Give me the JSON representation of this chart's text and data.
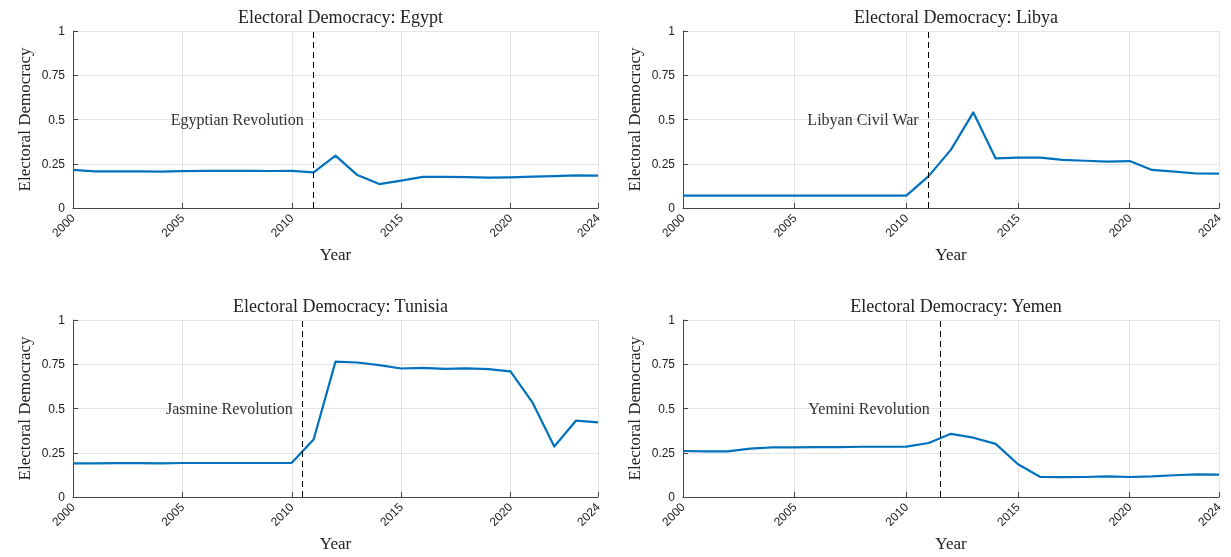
{
  "chart_data": [
    {
      "type": "line",
      "title": "Electoral Democracy: Egypt",
      "xlabel": "Year",
      "ylabel": "Electoral Democracy",
      "x": [
        2000,
        2001,
        2002,
        2003,
        2004,
        2005,
        2006,
        2007,
        2008,
        2009,
        2010,
        2011,
        2012,
        2013,
        2014,
        2015,
        2016,
        2017,
        2018,
        2019,
        2020,
        2021,
        2022,
        2023,
        2024
      ],
      "series": [
        {
          "color": "#0072bd",
          "values": [
            0.215,
            0.207,
            0.207,
            0.207,
            0.206,
            0.208,
            0.21,
            0.21,
            0.21,
            0.209,
            0.21,
            0.201,
            0.296,
            0.186,
            0.135,
            0.155,
            0.176,
            0.176,
            0.174,
            0.172,
            0.173,
            0.177,
            0.18,
            0.184,
            0.183
          ]
        }
      ],
      "xlim": [
        2000,
        2024
      ],
      "xticks": [
        2000,
        2005,
        2010,
        2015,
        2020,
        2024
      ],
      "ylim": [
        0,
        1
      ],
      "yticks": [
        0,
        0.25,
        0.5,
        0.75,
        1
      ],
      "grid": true,
      "ref_lines": [
        {
          "axis": "x",
          "value": 2011,
          "label": "Egyptian Revolution",
          "color": "#000000",
          "line_style": "dashed"
        }
      ]
    },
    {
      "type": "line",
      "title": "Electoral Democracy: Libya",
      "xlabel": "Year",
      "ylabel": "Electoral Democracy",
      "x": [
        2000,
        2001,
        2002,
        2003,
        2004,
        2005,
        2006,
        2007,
        2008,
        2009,
        2010,
        2011,
        2012,
        2013,
        2014,
        2015,
        2016,
        2017,
        2018,
        2019,
        2020,
        2021,
        2022,
        2023,
        2024
      ],
      "series": [
        {
          "color": "#0072bd",
          "values": [
            0.07,
            0.07,
            0.07,
            0.07,
            0.07,
            0.07,
            0.07,
            0.07,
            0.07,
            0.07,
            0.07,
            0.18,
            0.33,
            0.54,
            0.28,
            0.285,
            0.285,
            0.272,
            0.267,
            0.262,
            0.265,
            0.215,
            0.205,
            0.195,
            0.194
          ]
        }
      ],
      "xlim": [
        2000,
        2024
      ],
      "xticks": [
        2000,
        2005,
        2010,
        2015,
        2020,
        2024
      ],
      "ylim": [
        0,
        1
      ],
      "yticks": [
        0,
        0.25,
        0.5,
        0.75,
        1
      ],
      "grid": true,
      "ref_lines": [
        {
          "axis": "x",
          "value": 2011,
          "label": "Libyan Civil War",
          "color": "#000000",
          "line_style": "dashed"
        }
      ]
    },
    {
      "type": "line",
      "title": "Electoral Democracy: Tunisia",
      "xlabel": "Year",
      "ylabel": "Electoral Democracy",
      "x": [
        2000,
        2001,
        2002,
        2003,
        2004,
        2005,
        2006,
        2007,
        2008,
        2009,
        2010,
        2011,
        2012,
        2013,
        2014,
        2015,
        2016,
        2017,
        2018,
        2019,
        2020,
        2021,
        2022,
        2023,
        2024
      ],
      "series": [
        {
          "color": "#0072bd",
          "values": [
            0.19,
            0.19,
            0.191,
            0.191,
            0.19,
            0.192,
            0.192,
            0.192,
            0.192,
            0.192,
            0.193,
            0.325,
            0.765,
            0.76,
            0.745,
            0.726,
            0.73,
            0.724,
            0.727,
            0.722,
            0.71,
            0.535,
            0.285,
            0.432,
            0.422
          ]
        }
      ],
      "xlim": [
        2000,
        2024
      ],
      "xticks": [
        2000,
        2005,
        2010,
        2015,
        2020,
        2024
      ],
      "ylim": [
        0,
        1
      ],
      "yticks": [
        0,
        0.25,
        0.5,
        0.75,
        1
      ],
      "grid": true,
      "ref_lines": [
        {
          "axis": "x",
          "value": 2010.5,
          "label": "Jasmine Revolution",
          "color": "#000000",
          "line_style": "dashed"
        }
      ]
    },
    {
      "type": "line",
      "title": "Electoral Democracy: Yemen",
      "xlabel": "Year",
      "ylabel": "Electoral Democracy",
      "x": [
        2000,
        2001,
        2002,
        2003,
        2004,
        2005,
        2006,
        2007,
        2008,
        2009,
        2010,
        2011,
        2012,
        2013,
        2014,
        2015,
        2016,
        2017,
        2018,
        2019,
        2020,
        2021,
        2022,
        2023,
        2024
      ],
      "series": [
        {
          "color": "#0072bd",
          "values": [
            0.26,
            0.258,
            0.258,
            0.273,
            0.28,
            0.28,
            0.282,
            0.282,
            0.284,
            0.284,
            0.285,
            0.305,
            0.357,
            0.335,
            0.3,
            0.185,
            0.113,
            0.112,
            0.113,
            0.117,
            0.113,
            0.116,
            0.123,
            0.128,
            0.126
          ]
        }
      ],
      "xlim": [
        2000,
        2024
      ],
      "xticks": [
        2000,
        2005,
        2010,
        2015,
        2020,
        2024
      ],
      "ylim": [
        0,
        1
      ],
      "yticks": [
        0,
        0.25,
        0.5,
        0.75,
        1
      ],
      "grid": true,
      "ref_lines": [
        {
          "axis": "x",
          "value": 2011.5,
          "label": "Yemini Revolution",
          "color": "#000000",
          "line_style": "dashed"
        }
      ]
    }
  ]
}
